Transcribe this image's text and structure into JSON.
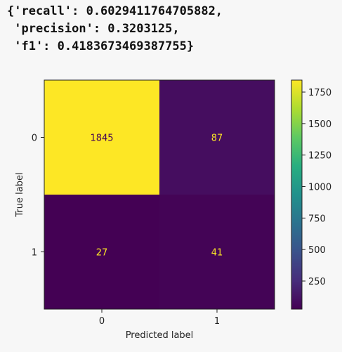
{
  "output_text": {
    "lines": [
      "{'recall': 0.6029411764705882,",
      " 'precision': 0.3203125,",
      " 'f1': 0.4183673469387755}"
    ]
  },
  "chart_data": {
    "type": "heatmap",
    "title": "",
    "xlabel": "Predicted label",
    "ylabel": "True label",
    "x_categories": [
      "0",
      "1"
    ],
    "y_categories": [
      "0",
      "1"
    ],
    "values": [
      [
        1845,
        87
      ],
      [
        27,
        41
      ]
    ],
    "colormap": "viridis",
    "colorbar": {
      "vmin": 27,
      "vmax": 1845,
      "ticks": [
        250,
        500,
        750,
        1000,
        1250,
        1500,
        1750
      ]
    },
    "text_colors": {
      "on_dark": "#fde725",
      "on_light": "#440154"
    },
    "grid": false
  }
}
